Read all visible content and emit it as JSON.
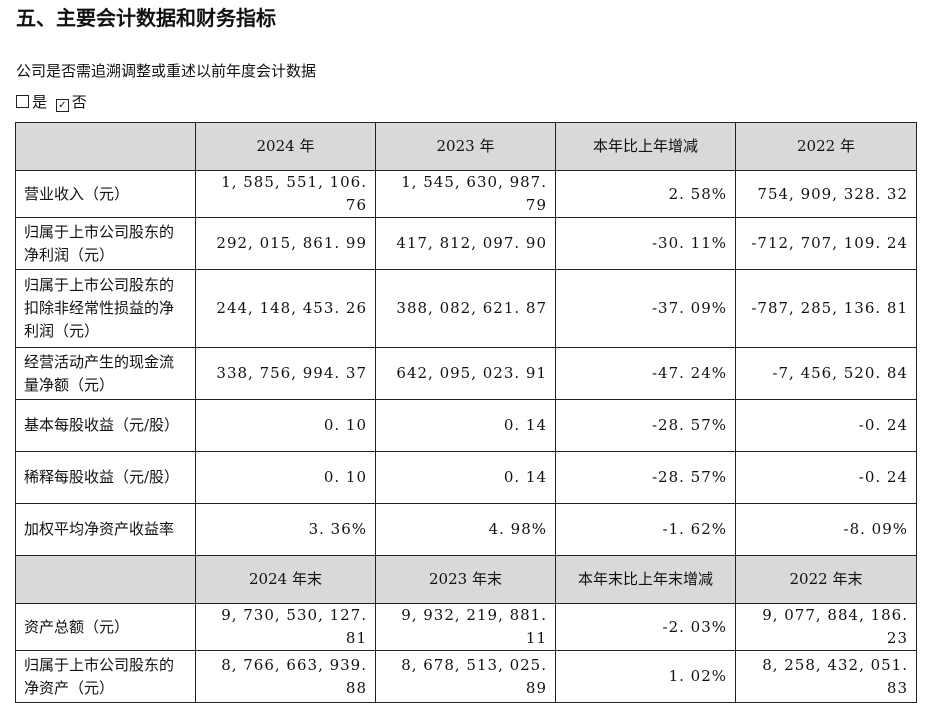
{
  "title": "五、主要会计数据和财务指标",
  "question": "公司是否需追溯调整或重述以前年度会计数据",
  "choices": [
    {
      "mark": "",
      "label": "是"
    },
    {
      "mark": "✓",
      "label": "否"
    }
  ],
  "header1": [
    "",
    "2024 年",
    "2023 年",
    "本年比上年增减",
    "2022 年"
  ],
  "rows1": [
    {
      "label": "营业收入（元）",
      "values": [
        "1, 585, 551, 106. 76",
        "1, 545, 630, 987. 79",
        "2. 58%",
        "754, 909, 328. 32"
      ]
    },
    {
      "label": "归属于上市公司股东的净利润（元）",
      "values": [
        "292, 015, 861. 99",
        "417, 812, 097. 90",
        "-30. 11%",
        "-712, 707, 109. 24"
      ]
    },
    {
      "label": "归属于上市公司股东的扣除非经常性损益的净利润（元）",
      "values": [
        "244, 148, 453. 26",
        "388, 082, 621. 87",
        "-37. 09%",
        "-787, 285, 136. 81"
      ]
    },
    {
      "label": "经营活动产生的现金流量净额（元）",
      "values": [
        "338, 756, 994. 37",
        "642, 095, 023. 91",
        "-47. 24%",
        "-7, 456, 520. 84"
      ]
    },
    {
      "label": "基本每股收益（元/股）",
      "values": [
        "0. 10",
        "0. 14",
        "-28. 57%",
        "-0. 24"
      ]
    },
    {
      "label": "稀释每股收益（元/股）",
      "values": [
        "0. 10",
        "0. 14",
        "-28. 57%",
        "-0. 24"
      ]
    },
    {
      "label": "加权平均净资产收益率",
      "values": [
        "3. 36%",
        "4. 98%",
        "-1. 62%",
        "-8. 09%"
      ]
    }
  ],
  "header2": [
    "",
    "2024 年末",
    "2023 年末",
    "本年末比上年末增减",
    "2022 年末"
  ],
  "rows2": [
    {
      "label": "资产总额（元）",
      "values": [
        "9, 730, 530, 127. 81",
        "9, 932, 219, 881. 11",
        "-2. 03%",
        "9, 077, 884, 186. 23"
      ]
    },
    {
      "label": "归属于上市公司股东的净资产（元）",
      "values": [
        "8, 766, 663, 939. 88",
        "8, 678, 513, 025. 89",
        "1. 02%",
        "8, 258, 432, 051. 83"
      ]
    }
  ]
}
